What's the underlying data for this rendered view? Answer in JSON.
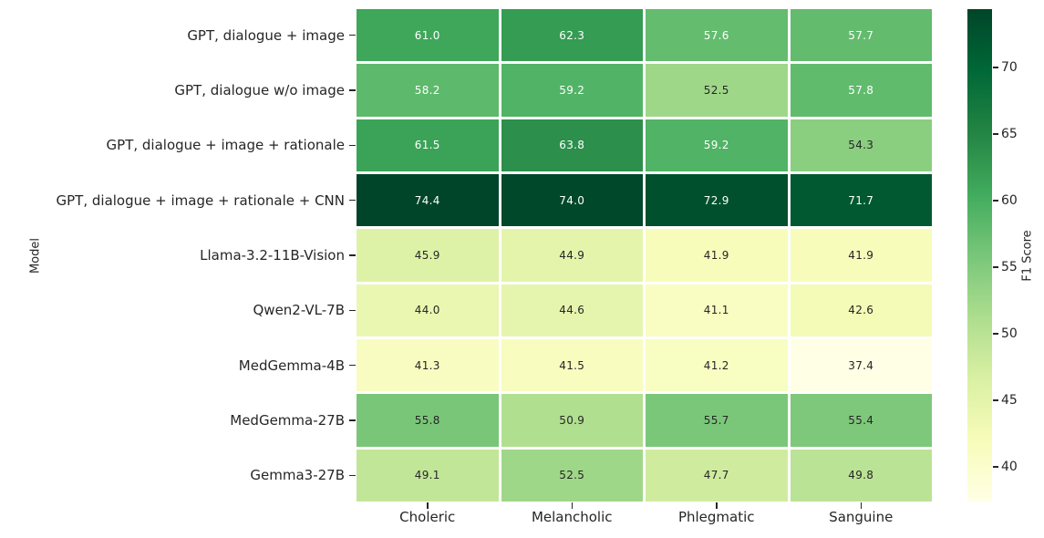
{
  "chart_data": {
    "type": "heatmap",
    "title": "",
    "xlabel": "",
    "ylabel": "Model",
    "colorbar_label": "F1 Score",
    "categories": [
      "Choleric",
      "Melancholic",
      "Phlegmatic",
      "Sanguine"
    ],
    "rows": [
      {
        "model": "GPT, dialogue + image",
        "values": [
          61.0,
          62.3,
          57.6,
          57.7
        ]
      },
      {
        "model": "GPT, dialogue w/o image",
        "values": [
          58.2,
          59.2,
          52.5,
          57.8
        ]
      },
      {
        "model": "GPT, dialogue + image + rationale",
        "values": [
          61.5,
          63.8,
          59.2,
          54.3
        ]
      },
      {
        "model": "GPT, dialogue + image + rationale + CNN",
        "values": [
          74.4,
          74.0,
          72.9,
          71.7
        ]
      },
      {
        "model": "Llama-3.2-11B-Vision",
        "values": [
          45.9,
          44.9,
          41.9,
          41.9
        ]
      },
      {
        "model": "Qwen2-VL-7B",
        "values": [
          44.0,
          44.6,
          41.1,
          42.6
        ]
      },
      {
        "model": "MedGemma-4B",
        "values": [
          41.3,
          41.5,
          41.2,
          37.4
        ]
      },
      {
        "model": "MedGemma-27B",
        "values": [
          55.8,
          50.9,
          55.7,
          55.4
        ]
      },
      {
        "model": "Gemma3-27B",
        "values": [
          49.1,
          52.5,
          47.7,
          49.8
        ]
      }
    ],
    "value_decimals": 1,
    "vmin": 37.4,
    "vmax": 74.4,
    "colormap": {
      "name": "YlGn",
      "anchors": [
        [
          0.0,
          "#ffffe5"
        ],
        [
          0.125,
          "#f7fcb9"
        ],
        [
          0.25,
          "#d9f0a3"
        ],
        [
          0.375,
          "#addd8e"
        ],
        [
          0.5,
          "#78c679"
        ],
        [
          0.625,
          "#41ab5d"
        ],
        [
          0.75,
          "#238443"
        ],
        [
          0.875,
          "#006837"
        ],
        [
          1.0,
          "#004529"
        ]
      ]
    },
    "colorbar_ticks": [
      70,
      65,
      60,
      55,
      50,
      45,
      40
    ],
    "annotation_text_color_light_cells": "#262626",
    "annotation_text_color_dark_cells": "#ffffff",
    "grid_line_color": "#ffffff",
    "legend_position": "right-colorbar",
    "grid": false
  }
}
